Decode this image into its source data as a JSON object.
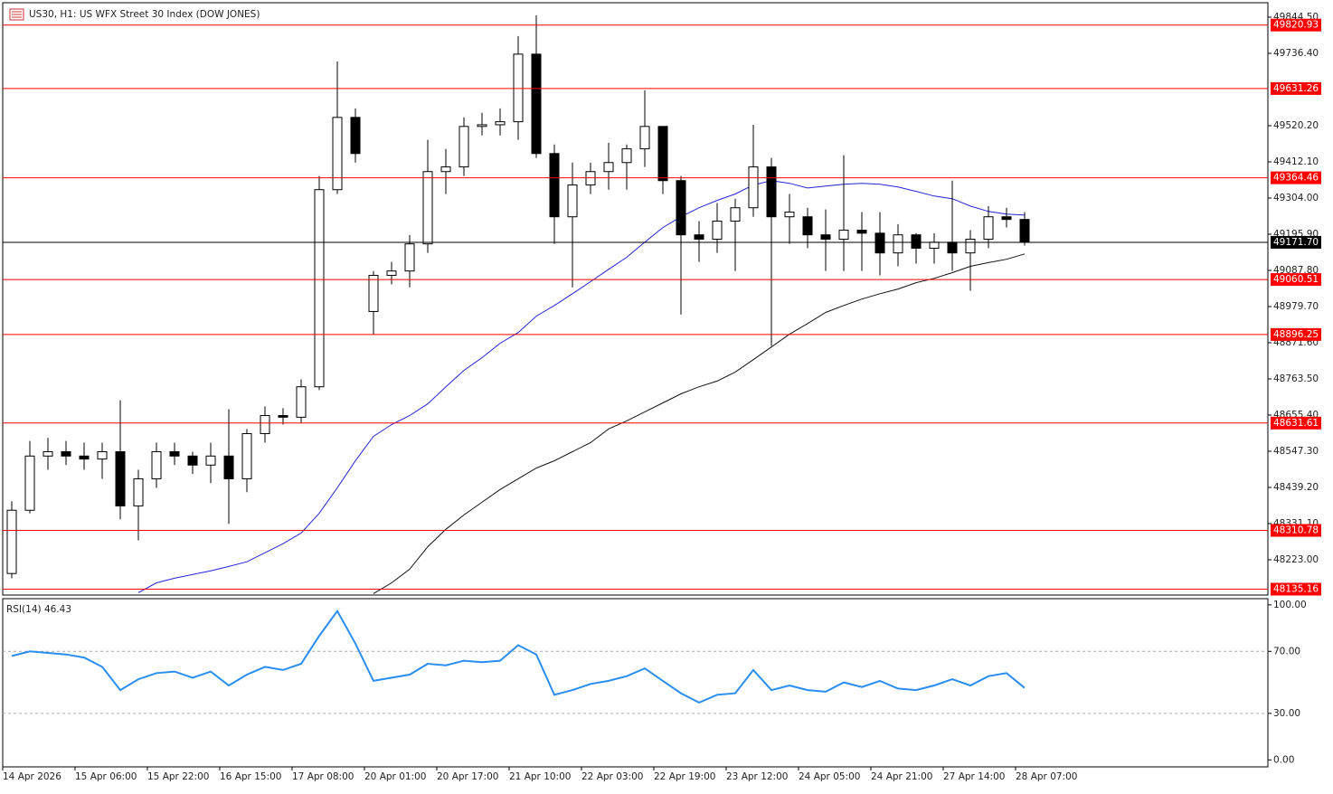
{
  "chart_data": [
    {
      "type": "candlestick",
      "title": "US30, H1:  US WFX Street 30 Index (DOW JONES)",
      "categories": [
        "14 Apr 2026",
        null,
        null,
        null,
        "15 Apr 06:00",
        null,
        null,
        null,
        "15 Apr 22:00",
        null,
        null,
        null,
        "16 Apr 15:00",
        null,
        null,
        null,
        "17 Apr 08:00",
        null,
        null,
        null,
        "20 Apr 01:00",
        null,
        null,
        null,
        "20 Apr 17:00",
        null,
        null,
        null,
        "21 Apr 10:00",
        null,
        null,
        null,
        "22 Apr 03:00",
        null,
        null,
        null,
        "22 Apr 19:00",
        null,
        null,
        null,
        "23 Apr 12:00",
        null,
        null,
        null,
        "24 Apr 05:00",
        null,
        null,
        null,
        "24 Apr 21:00",
        null,
        null,
        null,
        "27 Apr 14:00",
        null,
        null,
        null,
        "28 Apr 07:00"
      ],
      "open": [
        48182,
        48371,
        48533,
        48546,
        48533,
        48524,
        48546,
        48384,
        48465,
        48546,
        48533,
        48506,
        48533,
        48465,
        48600,
        48654,
        48649,
        48740,
        49329,
        49545,
        48965,
        49073,
        49086,
        49167,
        49383,
        49397,
        49518,
        49523,
        49532,
        49734,
        49437,
        49248,
        49343,
        49383,
        49410,
        49451,
        49518,
        49356,
        49194,
        49181,
        49235,
        49275,
        49397,
        49248,
        49248,
        49194,
        49181,
        49208,
        49199,
        49140,
        49194,
        49154,
        49172,
        49140,
        49181,
        49248,
        49240
      ],
      "high": [
        48398,
        48578,
        48587,
        48578,
        48573,
        48573,
        48700,
        48492,
        48573,
        48573,
        48546,
        48573,
        48673,
        48614,
        48681,
        48676,
        48762,
        49370,
        49712,
        49572,
        49086,
        49113,
        49194,
        49478,
        49451,
        49545,
        49559,
        49572,
        49788,
        49850,
        49464,
        49410,
        49410,
        49469,
        49464,
        49626,
        49518,
        49370,
        49235,
        49289,
        49302,
        49523,
        49424,
        49316,
        49275,
        49270,
        49432,
        49262,
        49262,
        49226,
        49199,
        49199,
        49356,
        49208,
        49280,
        49275,
        49262
      ],
      "low": [
        48168,
        48362,
        48492,
        48506,
        48492,
        48465,
        48344,
        48281,
        48438,
        48506,
        48479,
        48452,
        48330,
        48425,
        48573,
        48627,
        48632,
        48730,
        49316,
        49410,
        48897,
        49046,
        49037,
        49140,
        49316,
        49370,
        49491,
        49491,
        49478,
        49424,
        49167,
        49037,
        49316,
        49329,
        49329,
        49397,
        49316,
        48956,
        49113,
        49140,
        49086,
        49248,
        48862,
        49167,
        49154,
        49086,
        49086,
        49086,
        49073,
        49100,
        49108,
        49108,
        49086,
        49027,
        49154,
        49216,
        49162
      ],
      "close": [
        48371,
        48533,
        48546,
        48533,
        48524,
        48546,
        48384,
        48465,
        48546,
        48533,
        48506,
        48533,
        48465,
        48600,
        48654,
        48649,
        48740,
        49329,
        49545,
        49437,
        49073,
        49086,
        49167,
        49383,
        49397,
        49518,
        49523,
        49532,
        49734,
        49437,
        49248,
        49343,
        49383,
        49410,
        49451,
        49518,
        49356,
        49194,
        49181,
        49235,
        49275,
        49397,
        49248,
        49262,
        49194,
        49181,
        49208,
        49199,
        49140,
        49194,
        49154,
        49172,
        49140,
        49181,
        49248,
        49240,
        49171.7
      ],
      "up_color": "#ffffff",
      "down_color": "#000000",
      "lines": [
        {
          "color": "#2323d6",
          "values": [
            null,
            null,
            null,
            null,
            null,
            null,
            null,
            48125,
            48154,
            48168,
            48179,
            48190,
            48203,
            48217,
            48244,
            48271,
            48303,
            48362,
            48438,
            48519,
            48592,
            48627,
            48654,
            48689,
            48740,
            48789,
            48827,
            48870,
            48902,
            48951,
            48983,
            49018,
            49054,
            49091,
            49127,
            49172,
            49216,
            49248,
            49275,
            49297,
            49316,
            49343,
            49356,
            49348,
            49334,
            49340,
            49345,
            49348,
            49345,
            49337,
            49324,
            49310,
            49302,
            49280,
            49264,
            49256,
            49253
          ]
        },
        {
          "color": "#111111",
          "values": [
            null,
            null,
            null,
            null,
            null,
            null,
            null,
            null,
            null,
            null,
            null,
            null,
            null,
            null,
            null,
            null,
            null,
            null,
            null,
            null,
            48122,
            48154,
            48195,
            48262,
            48314,
            48357,
            48395,
            48433,
            48465,
            48497,
            48519,
            48546,
            48573,
            48614,
            48638,
            48665,
            48692,
            48719,
            48740,
            48757,
            48784,
            48821,
            48859,
            48897,
            48929,
            48962,
            48983,
            49002,
            49018,
            49032,
            49051,
            49064,
            49081,
            49100,
            49111,
            49121,
            49137
          ]
        }
      ],
      "levels": [
        49820.93,
        49631.26,
        49364.46,
        49060.51,
        48896.25,
        48631.61,
        48310.78,
        48135.16
      ],
      "level_color": "#ff0000",
      "last_price": {
        "value": 49171.7,
        "label": "49171.70"
      },
      "ylim": [
        48117.6,
        49887.7
      ],
      "yticks": [
        {
          "value": 49844.5,
          "label": "49844.50"
        },
        {
          "value": 49736.4,
          "label": "49736.40"
        },
        {
          "value": 49520.2,
          "label": "49520.20"
        },
        {
          "value": 49412.1,
          "label": "49412.10"
        },
        {
          "value": 49304,
          "label": "49304.00"
        },
        {
          "value": 49195.9,
          "label": "49195.90"
        },
        {
          "value": 49087.8,
          "label": "49087.80"
        },
        {
          "value": 48979.7,
          "label": "48979.70"
        },
        {
          "value": 48871.6,
          "label": "48871.60"
        },
        {
          "value": 48763.5,
          "label": "48763.50"
        },
        {
          "value": 48655.4,
          "label": "48655.40"
        },
        {
          "value": 48547.3,
          "label": "48547.30"
        },
        {
          "value": 48439.2,
          "label": "48439.20"
        },
        {
          "value": 48331.1,
          "label": "48331.10"
        },
        {
          "value": 48223,
          "label": "48223.00"
        }
      ]
    },
    {
      "type": "line",
      "title": "RSI(14) 46.43",
      "color": "#2a8ef0",
      "values": [
        67,
        70,
        69,
        68,
        66,
        60,
        45,
        52,
        56,
        57,
        53,
        57,
        48,
        55,
        60,
        58,
        62,
        80,
        96,
        75,
        51,
        53,
        55,
        62,
        61,
        64,
        63,
        64,
        74,
        68,
        42,
        45,
        49,
        51,
        54,
        59,
        51,
        43,
        37,
        42,
        43,
        58,
        45,
        48,
        45,
        44,
        50,
        47,
        51,
        46,
        45,
        48,
        52,
        48,
        54,
        56,
        46.43
      ],
      "levels": [
        70,
        30
      ],
      "ylim": [
        -4.5,
        104
      ],
      "yticks": [
        {
          "value": 100,
          "label": "100.00"
        },
        {
          "value": 70,
          "label": "70.00"
        },
        {
          "value": 30,
          "label": "30.00"
        },
        {
          "value": 0,
          "label": "0.00"
        }
      ]
    }
  ]
}
